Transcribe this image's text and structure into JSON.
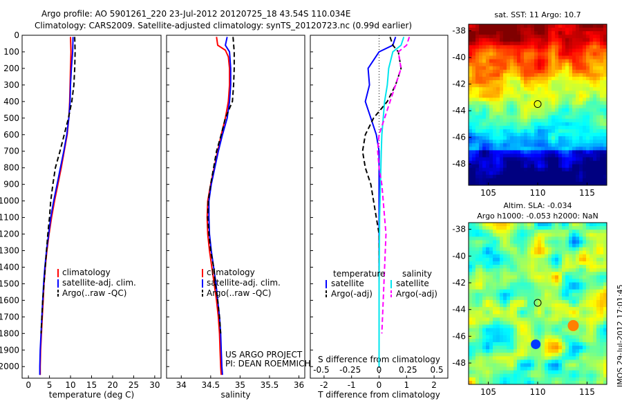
{
  "header": {
    "title_line1": "Argo profile: AO 5901261_220 23-Jul-2012 20120725_18 43.54S 110.034E",
    "title_line2": "Climatology: CARS2009. Satellite-adjusted climatology: synTS_20120723.nc (0.99d earlier)"
  },
  "colors": {
    "climatology": "#ff0000",
    "satellite": "#0000ff",
    "argo": "#000000",
    "sal_satellite": "#00e5ee",
    "sal_argo": "#ff00ff"
  },
  "footer": {
    "project_line1": "US ARGO PROJECT",
    "project_line2": "PI: DEAN ROEMMICH",
    "timestamp": "IMOS 29-Jul-2012 17:01:45"
  },
  "chart_data": [
    {
      "type": "line",
      "id": "temperature",
      "xlabel": "temperature (deg C)",
      "xlim": [
        -1.5,
        31.5
      ],
      "xticks": [
        0,
        5,
        10,
        15,
        20,
        25,
        30
      ],
      "ylim": [
        2070,
        0
      ],
      "yticks": [
        0,
        100,
        200,
        300,
        400,
        500,
        600,
        700,
        800,
        900,
        1000,
        1100,
        1200,
        1300,
        1400,
        1500,
        1600,
        1700,
        1800,
        1900,
        2000
      ],
      "legend": [
        "climatology",
        "satellite-adj. clim.",
        "Argo(..raw -QC)"
      ],
      "series": [
        {
          "name": "climatology",
          "style": "solid",
          "color": "#ff0000",
          "points": [
            [
              10,
              10
            ],
            [
              10.1,
              100
            ],
            [
              10.0,
              200
            ],
            [
              9.9,
              300
            ],
            [
              9.8,
              400
            ],
            [
              9.6,
              500
            ],
            [
              9.2,
              600
            ],
            [
              8.5,
              700
            ],
            [
              7.8,
              800
            ],
            [
              7.0,
              900
            ],
            [
              6.2,
              1000
            ],
            [
              5.5,
              1100
            ],
            [
              4.9,
              1200
            ],
            [
              4.4,
              1300
            ],
            [
              4.0,
              1400
            ],
            [
              3.7,
              1500
            ],
            [
              3.5,
              1600
            ],
            [
              3.3,
              1700
            ],
            [
              3.1,
              1800
            ],
            [
              2.9,
              1900
            ],
            [
              2.8,
              2000
            ],
            [
              2.8,
              2050
            ]
          ]
        },
        {
          "name": "satellite-adj. clim.",
          "style": "solid",
          "color": "#0000ff",
          "points": [
            [
              10.6,
              10
            ],
            [
              10.5,
              100
            ],
            [
              10.2,
              200
            ],
            [
              10.0,
              300
            ],
            [
              9.9,
              400
            ],
            [
              9.6,
              500
            ],
            [
              9.1,
              600
            ],
            [
              8.4,
              700
            ],
            [
              7.6,
              800
            ],
            [
              6.8,
              900
            ],
            [
              6.0,
              1000
            ],
            [
              5.3,
              1100
            ],
            [
              4.8,
              1200
            ],
            [
              4.3,
              1300
            ],
            [
              3.9,
              1400
            ],
            [
              3.6,
              1500
            ],
            [
              3.4,
              1600
            ],
            [
              3.2,
              1700
            ],
            [
              3.0,
              1800
            ],
            [
              2.8,
              1900
            ],
            [
              2.7,
              2000
            ],
            [
              2.7,
              2050
            ]
          ]
        },
        {
          "name": "Argo(..raw -QC)",
          "style": "dashed",
          "color": "#000000",
          "points": [
            [
              11,
              10
            ],
            [
              11.1,
              100
            ],
            [
              11.0,
              200
            ],
            [
              10.8,
              300
            ],
            [
              10.3,
              400
            ],
            [
              9.5,
              500
            ],
            [
              8.5,
              600
            ],
            [
              7.5,
              700
            ],
            [
              6.4,
              800
            ],
            [
              5.8,
              900
            ],
            [
              5.3,
              1000
            ],
            [
              5.0,
              1100
            ],
            [
              4.6,
              1200
            ],
            [
              4.3,
              1300
            ],
            [
              4.0,
              1400
            ],
            [
              3.7,
              1500
            ],
            [
              3.4,
              1600
            ],
            [
              3.2,
              1700
            ],
            [
              3.0,
              1800
            ]
          ]
        }
      ]
    },
    {
      "type": "line",
      "id": "salinity",
      "xlabel": "salinity",
      "xlim": [
        33.75,
        36.1
      ],
      "xticks": [
        34,
        34.5,
        35,
        35.5,
        36
      ],
      "ylim": [
        2070,
        0
      ],
      "legend": [
        "climatology",
        "satellite-adj. clim.",
        "Argo(..raw -QC)"
      ],
      "series": [
        {
          "name": "climatology",
          "style": "solid",
          "color": "#ff0000",
          "points": [
            [
              34.6,
              10
            ],
            [
              34.62,
              60
            ],
            [
              34.75,
              90
            ],
            [
              34.8,
              130
            ],
            [
              34.82,
              200
            ],
            [
              34.82,
              300
            ],
            [
              34.8,
              400
            ],
            [
              34.75,
              500
            ],
            [
              34.68,
              600
            ],
            [
              34.62,
              700
            ],
            [
              34.56,
              800
            ],
            [
              34.5,
              900
            ],
            [
              34.45,
              1000
            ],
            [
              34.44,
              1100
            ],
            [
              34.45,
              1200
            ],
            [
              34.48,
              1300
            ],
            [
              34.52,
              1400
            ],
            [
              34.56,
              1500
            ],
            [
              34.6,
              1600
            ],
            [
              34.63,
              1700
            ],
            [
              34.65,
              1800
            ],
            [
              34.66,
              1900
            ],
            [
              34.67,
              2000
            ],
            [
              34.68,
              2050
            ]
          ]
        },
        {
          "name": "satellite-adj. clim.",
          "style": "solid",
          "color": "#0000ff",
          "points": [
            [
              34.78,
              10
            ],
            [
              34.75,
              60
            ],
            [
              34.82,
              100
            ],
            [
              34.84,
              200
            ],
            [
              34.84,
              300
            ],
            [
              34.82,
              400
            ],
            [
              34.78,
              500
            ],
            [
              34.7,
              600
            ],
            [
              34.63,
              700
            ],
            [
              34.57,
              800
            ],
            [
              34.51,
              900
            ],
            [
              34.47,
              1000
            ],
            [
              34.47,
              1100
            ],
            [
              34.48,
              1200
            ],
            [
              34.51,
              1300
            ],
            [
              34.55,
              1400
            ],
            [
              34.59,
              1500
            ],
            [
              34.62,
              1600
            ],
            [
              34.65,
              1700
            ],
            [
              34.67,
              1800
            ],
            [
              34.68,
              1900
            ],
            [
              34.69,
              2000
            ],
            [
              34.7,
              2050
            ]
          ]
        },
        {
          "name": "Argo(..raw -QC)",
          "style": "dashed",
          "color": "#000000",
          "points": [
            [
              34.88,
              10
            ],
            [
              34.9,
              100
            ],
            [
              34.9,
              200
            ],
            [
              34.89,
              300
            ],
            [
              34.87,
              400
            ],
            [
              34.75,
              500
            ],
            [
              34.68,
              600
            ],
            [
              34.6,
              700
            ],
            [
              34.55,
              800
            ],
            [
              34.5,
              900
            ],
            [
              34.46,
              1000
            ],
            [
              34.45,
              1100
            ],
            [
              34.47,
              1200
            ],
            [
              34.5,
              1300
            ],
            [
              34.55,
              1400
            ],
            [
              34.58,
              1500
            ],
            [
              34.62,
              1600
            ],
            [
              34.65,
              1700
            ],
            [
              34.67,
              1800
            ]
          ]
        }
      ]
    },
    {
      "type": "line",
      "id": "difference",
      "xlabel": "T difference from climatology",
      "xlabel_top": "S difference from climatology",
      "xlim": [
        -2.5,
        2.5
      ],
      "xticks": [
        -2,
        -1,
        0,
        1,
        2
      ],
      "top_ticks": [
        "-0.5",
        "-0.25",
        "0",
        "0.25",
        "0.5"
      ],
      "ylim": [
        2070,
        0
      ],
      "legend": {
        "temperature_header": "temperature",
        "salinity_header": "salinity",
        "entries": [
          "satellite",
          "Argo(-adj)",
          "satellite",
          "Argo(-adj)"
        ]
      },
      "series": [
        {
          "name": "T satellite",
          "style": "solid",
          "color": "#0000ff",
          "points": [
            [
              0.6,
              10
            ],
            [
              0.5,
              60
            ],
            [
              0,
              100
            ],
            [
              -0.4,
              200
            ],
            [
              -0.35,
              300
            ],
            [
              -0.5,
              400
            ],
            [
              -0.3,
              500
            ],
            [
              -0.1,
              600
            ],
            [
              0,
              700
            ],
            [
              0,
              1000
            ],
            [
              0,
              1500
            ],
            [
              0,
              2000
            ]
          ]
        },
        {
          "name": "T Argo(-adj)",
          "style": "dashed",
          "color": "#000000",
          "points": [
            [
              0.4,
              10
            ],
            [
              0.5,
              60
            ],
            [
              0.7,
              100
            ],
            [
              0.8,
              200
            ],
            [
              0.6,
              300
            ],
            [
              0.3,
              400
            ],
            [
              -0.2,
              500
            ],
            [
              -0.5,
              600
            ],
            [
              -0.6,
              700
            ],
            [
              -0.5,
              800
            ],
            [
              -0.3,
              900
            ],
            [
              -0.2,
              1000
            ],
            [
              -0.1,
              1100
            ],
            [
              0,
              1200
            ],
            [
              0,
              1400
            ],
            [
              0,
              1800
            ]
          ]
        },
        {
          "name": "S satellite",
          "style": "solid",
          "color": "#00e5ee",
          "points": [
            [
              0.9,
              10
            ],
            [
              0.8,
              60
            ],
            [
              0.5,
              100
            ],
            [
              0.35,
              200
            ],
            [
              0.3,
              300
            ],
            [
              0.2,
              400
            ],
            [
              0.15,
              500
            ],
            [
              0.1,
              600
            ],
            [
              0.08,
              700
            ],
            [
              0.05,
              900
            ],
            [
              0.02,
              1100
            ],
            [
              0,
              1500
            ],
            [
              0,
              2000
            ]
          ]
        },
        {
          "name": "S Argo(-adj)",
          "style": "dashed",
          "color": "#ff00ff",
          "points": [
            [
              1.1,
              10
            ],
            [
              1.0,
              60
            ],
            [
              0.7,
              100
            ],
            [
              0.8,
              200
            ],
            [
              0.6,
              300
            ],
            [
              0.4,
              400
            ],
            [
              0.2,
              500
            ],
            [
              0,
              600
            ],
            [
              -0.05,
              700
            ],
            [
              0,
              800
            ],
            [
              0.1,
              900
            ],
            [
              0.15,
              1000
            ],
            [
              0.2,
              1100
            ],
            [
              0.25,
              1200
            ],
            [
              0.2,
              1400
            ],
            [
              0.15,
              1600
            ],
            [
              0.1,
              1800
            ]
          ]
        }
      ]
    },
    {
      "type": "heatmap",
      "id": "sst-map",
      "title": "sat. SST: 11 Argo: 10.7",
      "xlim": [
        103,
        117
      ],
      "ylim": [
        -49.6,
        -37.5
      ],
      "xticks": [
        105,
        110,
        115
      ],
      "yticks": [
        -38,
        -40,
        -42,
        -44,
        -46,
        -48
      ],
      "marker": [
        110,
        -43.5
      ]
    },
    {
      "type": "heatmap",
      "id": "sla-map",
      "title_line1": "Altim. SLA: -0.034",
      "title_line2": "Argo h1000: -0.053 h2000: NaN",
      "xlim": [
        103,
        117
      ],
      "ylim": [
        -49.6,
        -37.5
      ],
      "xticks": [
        105,
        110,
        115
      ],
      "yticks": [
        -38,
        -40,
        -42,
        -44,
        -46,
        -48
      ],
      "marker": [
        110,
        -43.5
      ]
    }
  ]
}
